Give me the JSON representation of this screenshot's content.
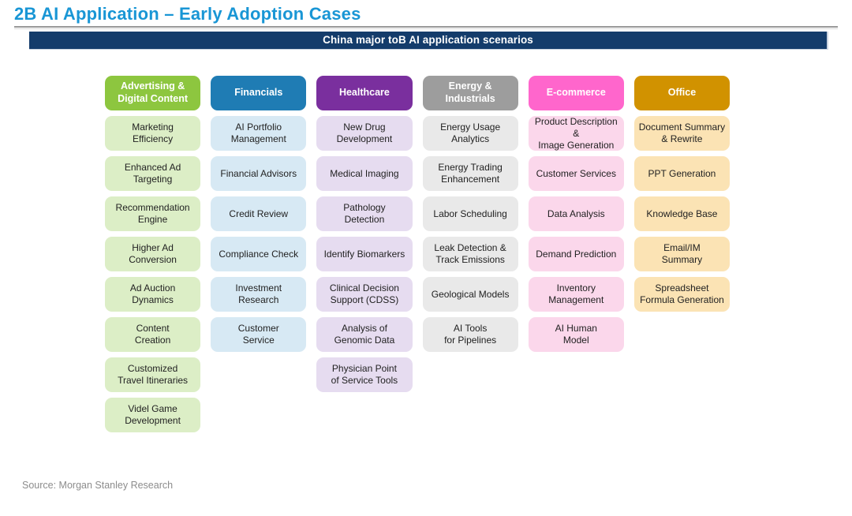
{
  "page": {
    "title": "2B AI Application – Early Adoption Cases",
    "banner": "China major toB AI application scenarios",
    "source": "Source: Morgan Stanley Research"
  },
  "colors": {
    "title_text": "#1996D5",
    "banner_bg": "#143C6B",
    "banner_text": "#FFFFFF",
    "title_rule": "#9A9A9A",
    "source_text": "#8C8C8C"
  },
  "columns": [
    {
      "id": "advertising-digital-content",
      "header": "Advertising &\nDigital Content",
      "header_color": "#8DC63F",
      "cell_color": "#DCEEC6",
      "cells": [
        "Marketing\nEfficiency",
        "Enhanced Ad\nTargeting",
        "Recommendation\nEngine",
        "Higher Ad\nConversion",
        "Ad Auction\nDynamics",
        "Content\nCreation",
        "Customized\nTravel Itineraries",
        "Videl Game\nDevelopment"
      ]
    },
    {
      "id": "financials",
      "header": "Financials",
      "header_color": "#1F7CB4",
      "cell_color": "#D7E9F4",
      "cells": [
        "AI Portfolio\nManagement",
        "Financial Advisors",
        "Credit Review",
        "Compliance Check",
        "Investment\nResearch",
        "Customer\nService"
      ]
    },
    {
      "id": "healthcare",
      "header": "Healthcare",
      "header_color": "#7A2F9E",
      "cell_color": "#E6DCF0",
      "cells": [
        "New Drug\nDevelopment",
        "Medical Imaging",
        "Pathology\nDetection",
        "Identify Biomarkers",
        "Clinical Decision\nSupport (CDSS)",
        "Analysis of\nGenomic Data",
        "Physician Point\nof Service Tools"
      ]
    },
    {
      "id": "energy-industrials",
      "header": "Energy &\nIndustrials",
      "header_color": "#9D9D9D",
      "cell_color": "#E9E9E9",
      "cells": [
        "Energy Usage\nAnalytics",
        "Energy Trading\nEnhancement",
        "Labor Scheduling",
        "Leak Detection &\nTrack Emissions",
        "Geological Models",
        "AI Tools\nfor Pipelines"
      ]
    },
    {
      "id": "e-commerce",
      "header": "E-commerce",
      "header_color": "#FF66CC",
      "cell_color": "#FBD7EB",
      "cells": [
        "Product Description &\nImage Generation",
        "Customer Services",
        "Data Analysis",
        "Demand Prediction",
        "Inventory\nManagement",
        "AI Human\nModel"
      ]
    },
    {
      "id": "office",
      "header": "Office",
      "header_color": "#D19200",
      "cell_color": "#FBE3B4",
      "cells": [
        "Document Summary\n& Rewrite",
        "PPT Generation",
        "Knowledge Base",
        "Email/IM\nSummary",
        "Spreadsheet\nFormula Generation"
      ]
    }
  ]
}
